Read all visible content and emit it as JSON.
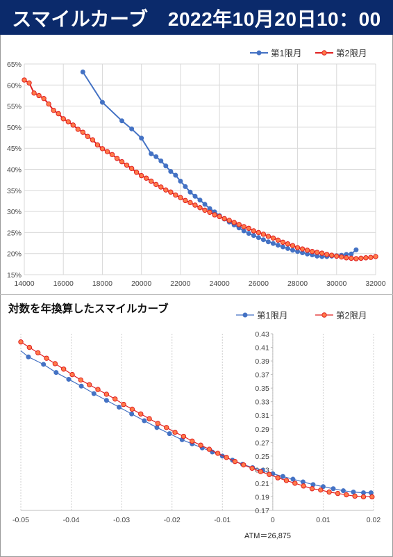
{
  "header": {
    "title": "スマイルカーブ　2022年10月20日10：00"
  },
  "colors": {
    "series1": "#4472c4",
    "series2": "#e02020",
    "series2_fill": "#ff7b4a",
    "banner": "#0b2a6b"
  },
  "chart_data": [
    {
      "type": "line",
      "title": "",
      "xlim": [
        14000,
        32000
      ],
      "ylim": [
        15,
        65
      ],
      "x_ticks": [
        "14000",
        "16000",
        "18000",
        "20000",
        "22000",
        "24000",
        "26000",
        "28000",
        "30000",
        "32000"
      ],
      "y_ticks": [
        "15%",
        "20%",
        "25%",
        "30%",
        "35%",
        "40%",
        "45%",
        "50%",
        "55%",
        "60%",
        "65%"
      ],
      "legend_position": "top-right",
      "series": [
        {
          "name": "第1限月",
          "x": [
            17000,
            18000,
            19000,
            19500,
            20000,
            20500,
            20750,
            21000,
            21250,
            21500,
            21750,
            22000,
            22250,
            22500,
            22750,
            23000,
            23250,
            23500,
            23750,
            24000,
            24250,
            24500,
            24750,
            25000,
            25250,
            25500,
            25750,
            26000,
            26250,
            26500,
            26750,
            27000,
            27250,
            27500,
            27750,
            28000,
            28250,
            28500,
            28750,
            29000,
            29250,
            29500,
            29750,
            30000,
            30250,
            30500,
            30750,
            31000
          ],
          "y": [
            63.1,
            55.9,
            51.5,
            49.6,
            47.4,
            43.7,
            43.0,
            42.0,
            40.8,
            39.5,
            38.6,
            37.2,
            35.9,
            34.6,
            33.6,
            32.7,
            31.7,
            30.7,
            29.9,
            29.0,
            28.2,
            27.5,
            26.8,
            26.1,
            25.4,
            24.8,
            24.3,
            23.8,
            23.3,
            22.8,
            22.4,
            22.0,
            21.6,
            21.2,
            20.8,
            20.5,
            20.2,
            19.9,
            19.7,
            19.4,
            19.3,
            19.3,
            19.4,
            19.5,
            19.6,
            19.8,
            19.9,
            20.9
          ]
        },
        {
          "name": "第2限月",
          "x": [
            14000,
            14250,
            14500,
            14750,
            15000,
            15250,
            15500,
            15750,
            16000,
            16250,
            16500,
            16750,
            17000,
            17250,
            17500,
            17750,
            18000,
            18250,
            18500,
            18750,
            19000,
            19250,
            19500,
            19750,
            20000,
            20250,
            20500,
            20750,
            21000,
            21250,
            21500,
            21750,
            22000,
            22250,
            22500,
            22750,
            23000,
            23250,
            23500,
            23750,
            24000,
            24250,
            24500,
            24750,
            25000,
            25250,
            25500,
            25750,
            26000,
            26250,
            26500,
            26750,
            27000,
            27250,
            27500,
            27750,
            28000,
            28250,
            28500,
            28750,
            29000,
            29250,
            29500,
            29750,
            30000,
            30250,
            30500,
            30750,
            31000,
            31250,
            31500,
            31750,
            32000
          ],
          "y": [
            61.2,
            60.5,
            58.1,
            57.5,
            56.8,
            55.5,
            54.0,
            53.2,
            52.0,
            51.3,
            50.5,
            49.5,
            48.8,
            47.8,
            47.0,
            45.8,
            44.9,
            44.2,
            43.5,
            42.6,
            41.8,
            41.0,
            40.2,
            39.3,
            38.5,
            37.9,
            37.2,
            36.4,
            35.8,
            35.1,
            34.6,
            33.9,
            33.3,
            32.6,
            32.1,
            31.5,
            30.9,
            30.3,
            29.8,
            29.2,
            28.8,
            28.3,
            27.9,
            27.4,
            26.9,
            26.4,
            26.0,
            25.4,
            25.0,
            24.6,
            24.1,
            23.7,
            23.2,
            22.7,
            22.3,
            21.9,
            21.4,
            21.1,
            20.8,
            20.5,
            20.3,
            20.1,
            19.8,
            19.6,
            19.4,
            19.2,
            19.0,
            18.9,
            18.8,
            18.9,
            19.0,
            19.1,
            19.3
          ]
        }
      ]
    },
    {
      "type": "line",
      "title": "対数を年換算したスマイルカーブ",
      "xlim": [
        -0.05,
        0.02
      ],
      "ylim": [
        0.17,
        0.43
      ],
      "x_ticks": [
        "-0.05",
        "-0.04",
        "-0.03",
        "-0.02",
        "-0.01",
        "0",
        "0.01",
        "0.02"
      ],
      "y_ticks": [
        "0.17",
        "0.19",
        "0.21",
        "0.23",
        "0.25",
        "0.27",
        "0.29",
        "0.31",
        "0.33",
        "0.35",
        "0.37",
        "0.39",
        "0.41",
        "0.43"
      ],
      "legend_position": "top-right",
      "annotation": "ATM＝26,875",
      "series": [
        {
          "name": "第1限月",
          "x": [
            -0.0485,
            -0.0455,
            -0.043,
            -0.0405,
            -0.038,
            -0.0355,
            -0.033,
            -0.0305,
            -0.028,
            -0.0255,
            -0.023,
            -0.0205,
            -0.018,
            -0.016,
            -0.014,
            -0.012,
            -0.01,
            -0.008,
            -0.006,
            -0.004,
            -0.002,
            0.0,
            0.002,
            0.004,
            0.006,
            0.008,
            0.01,
            0.012,
            0.014,
            0.016,
            0.018,
            0.0195
          ],
          "y": [
            0.396,
            0.385,
            0.373,
            0.363,
            0.353,
            0.342,
            0.332,
            0.322,
            0.312,
            0.302,
            0.292,
            0.283,
            0.274,
            0.268,
            0.262,
            0.256,
            0.25,
            0.244,
            0.238,
            0.233,
            0.229,
            0.224,
            0.22,
            0.216,
            0.212,
            0.208,
            0.205,
            0.202,
            0.199,
            0.197,
            0.196,
            0.196
          ]
        },
        {
          "name": "第2限月",
          "x": [
            -0.05,
            -0.0483,
            -0.0466,
            -0.0449,
            -0.0432,
            -0.0415,
            -0.0398,
            -0.0381,
            -0.0364,
            -0.0347,
            -0.033,
            -0.0313,
            -0.0296,
            -0.0279,
            -0.0262,
            -0.0245,
            -0.0228,
            -0.0211,
            -0.0194,
            -0.0177,
            -0.016,
            -0.0143,
            -0.0126,
            -0.0109,
            -0.0092,
            -0.0075,
            -0.0058,
            -0.0041,
            -0.0024,
            -0.0007,
            0.001,
            0.0027,
            0.0044,
            0.0061,
            0.0078,
            0.0095,
            0.0112,
            0.0129,
            0.0146,
            0.0163,
            0.018,
            0.0197
          ],
          "y": [
            0.418,
            0.41,
            0.402,
            0.394,
            0.386,
            0.378,
            0.37,
            0.362,
            0.355,
            0.348,
            0.341,
            0.334,
            0.326,
            0.319,
            0.312,
            0.305,
            0.298,
            0.292,
            0.285,
            0.279,
            0.272,
            0.266,
            0.26,
            0.254,
            0.248,
            0.242,
            0.237,
            0.232,
            0.227,
            0.223,
            0.218,
            0.214,
            0.21,
            0.206,
            0.202,
            0.2,
            0.197,
            0.195,
            0.193,
            0.191,
            0.19,
            0.19
          ]
        }
      ]
    }
  ]
}
